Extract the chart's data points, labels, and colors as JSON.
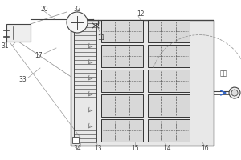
{
  "bg_color": "#ffffff",
  "line_color": "#999999",
  "dark_line": "#444444",
  "label_color": "#444444",
  "fig_w": 3.0,
  "fig_h": 2.0,
  "dpi": 100
}
